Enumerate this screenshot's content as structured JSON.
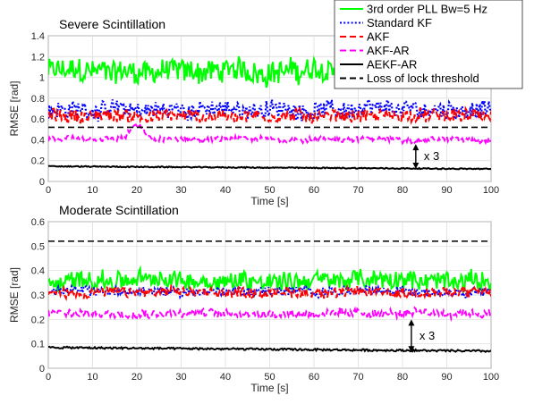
{
  "chart_data": [
    {
      "type": "line",
      "title": "Severe Scintillation",
      "xlabel": "Time [s]",
      "ylabel": "RMSE [rad]",
      "xlim": [
        0,
        100
      ],
      "ylim": [
        0,
        1.4
      ],
      "xticks": [
        "0",
        "10",
        "20",
        "30",
        "40",
        "50",
        "60",
        "70",
        "80",
        "90",
        "100"
      ],
      "yticks": [
        "0",
        "0.2",
        "0.4",
        "0.6",
        "0.8",
        "1",
        "1.2",
        "1.4"
      ],
      "grid": true,
      "annotation": {
        "text": "x 3",
        "x": 83,
        "y_from": 0.12,
        "y_to": 0.36
      },
      "series": [
        {
          "name": "3rd order PLL Bw=5 Hz",
          "color": "#00ff00",
          "style": "solid",
          "mean": 1.06,
          "amp": 0.12,
          "width": 2.0
        },
        {
          "name": "Standard KF",
          "color": "#0000ff",
          "style": "dotted",
          "mean": 0.69,
          "amp": 0.085,
          "width": 2.2
        },
        {
          "name": "AKF",
          "color": "#ff0000",
          "style": "dashed",
          "mean": 0.63,
          "amp": 0.065,
          "width": 2.0
        },
        {
          "name": "AKF-AR",
          "color": "#ff00ff",
          "style": "dashed",
          "mean": 0.405,
          "amp": 0.028,
          "width": 2.0
        },
        {
          "name": "AEKF-AR",
          "color": "#000000",
          "style": "solid",
          "mean": 0.12,
          "amp": 0.005,
          "width": 2.0
        },
        {
          "name": "Loss of lock threshold",
          "color": "#000000",
          "style": "dashed",
          "value": 0.52,
          "width": 1.6
        }
      ],
      "legend": "top-right"
    },
    {
      "type": "line",
      "title": "Moderate Scintillation",
      "xlabel": "Time [s]",
      "ylabel": "RMSE [rad]",
      "xlim": [
        0,
        100
      ],
      "ylim": [
        0,
        0.6
      ],
      "xticks": [
        "0",
        "10",
        "20",
        "30",
        "40",
        "50",
        "60",
        "70",
        "80",
        "90",
        "100"
      ],
      "yticks": [
        "0",
        "0.1",
        "0.2",
        "0.3",
        "0.4",
        "0.5",
        "0.6"
      ],
      "grid": true,
      "annotation": {
        "text": "x 3",
        "x": 82,
        "y_from": 0.065,
        "y_to": 0.2
      },
      "series": [
        {
          "name": "3rd order PLL Bw=5 Hz",
          "color": "#00ff00",
          "style": "solid",
          "mean": 0.36,
          "amp": 0.04,
          "width": 2.0
        },
        {
          "name": "Standard KF",
          "color": "#0000ff",
          "style": "dotted",
          "mean": 0.315,
          "amp": 0.02,
          "width": 2.0
        },
        {
          "name": "AKF",
          "color": "#ff0000",
          "style": "dashed",
          "mean": 0.31,
          "amp": 0.022,
          "width": 2.0
        },
        {
          "name": "AKF-AR",
          "color": "#ff00ff",
          "style": "dashed",
          "mean": 0.225,
          "amp": 0.018,
          "width": 2.0
        },
        {
          "name": "AEKF-AR",
          "color": "#000000",
          "style": "solid",
          "mean": 0.07,
          "amp": 0.004,
          "width": 2.0
        },
        {
          "name": "Loss of lock threshold",
          "color": "#000000",
          "style": "dashed",
          "value": 0.52,
          "width": 1.6
        }
      ]
    }
  ]
}
